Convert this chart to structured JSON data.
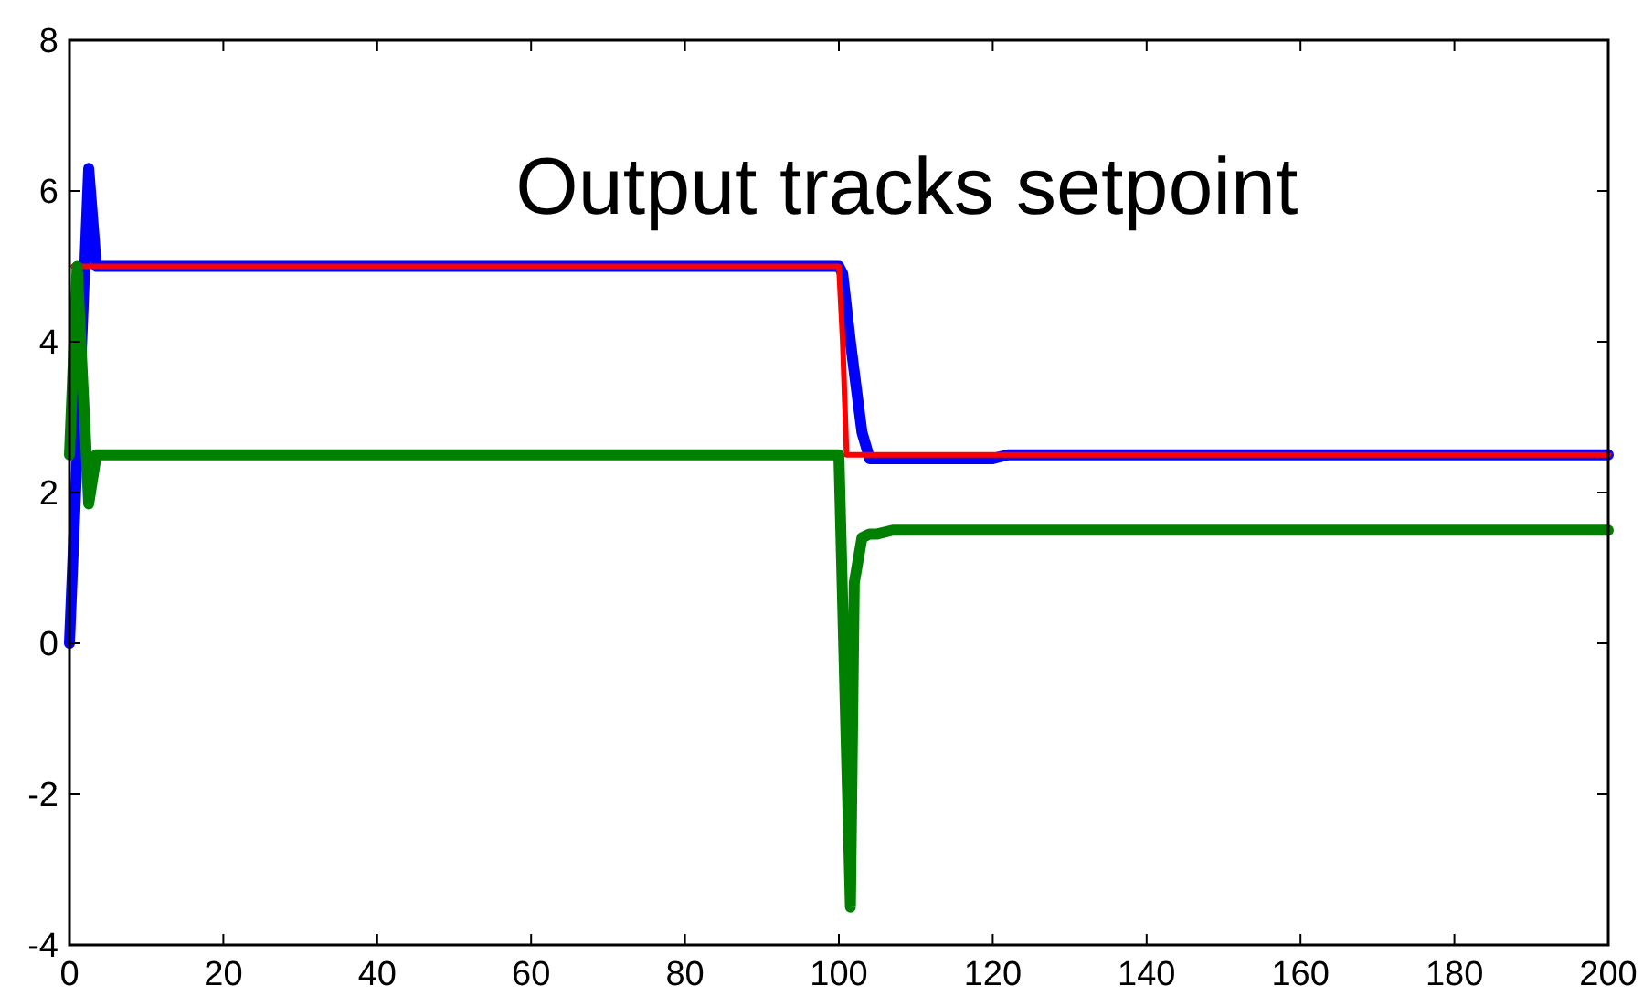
{
  "chart_data": {
    "type": "line",
    "annotations": [
      "Output tracks setpoint"
    ],
    "xlim": [
      0,
      200
    ],
    "xticks": [
      0,
      20,
      40,
      60,
      80,
      100,
      120,
      140,
      160,
      180,
      200
    ],
    "ylim": [
      -4,
      8
    ],
    "yticks": [
      -4,
      -2,
      0,
      2,
      4,
      6,
      8
    ],
    "grid": false,
    "line_style": "solid",
    "series": [
      {
        "color": "#0000ff",
        "x": [
          0,
          1,
          2.5,
          3.5,
          20,
          60,
          100,
          100.5,
          101.5,
          103,
          104,
          110,
          120,
          122,
          140,
          200
        ],
        "values": [
          0,
          2.5,
          6.3,
          5,
          5,
          5,
          5,
          4.9,
          4,
          2.8,
          2.45,
          2.45,
          2.45,
          2.5,
          2.5,
          2.5
        ]
      },
      {
        "color": "#ff0000",
        "x": [
          0.5,
          40,
          100,
          100.5,
          101,
          140,
          200
        ],
        "values": [
          5,
          5,
          5,
          4,
          2.5,
          2.5,
          2.5
        ]
      },
      {
        "color": "#008000",
        "x": [
          0,
          1,
          2.5,
          3.5,
          20,
          60,
          100,
          101.5,
          102,
          103,
          104,
          105,
          107,
          140,
          200
        ],
        "values": [
          2.5,
          5,
          1.85,
          2.5,
          2.5,
          2.5,
          2.5,
          -3.5,
          0.8,
          1.4,
          1.45,
          1.45,
          1.5,
          1.5,
          1.5
        ]
      }
    ]
  }
}
